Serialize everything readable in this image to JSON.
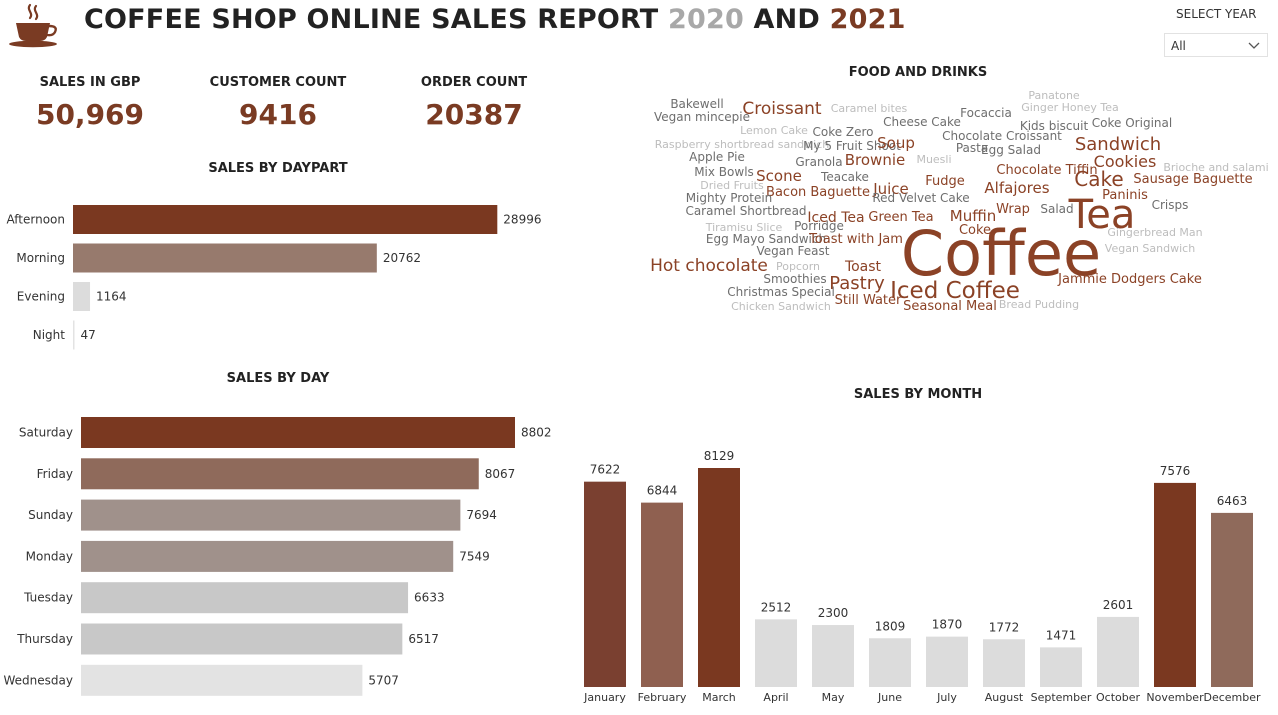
{
  "header": {
    "title_part1": "COFFEE SHOP ONLINE SALES REPORT ",
    "title_year1": "2020",
    "title_and": " AND ",
    "title_year2": "2021",
    "logo_icon": "coffee-cup-icon",
    "colors": {
      "year1": "#a8a8a8",
      "year2": "#7a3b23"
    }
  },
  "filter": {
    "label": "SELECT YEAR",
    "selected": "All",
    "icon": "chevron-down-icon"
  },
  "kpis": [
    {
      "label": "SALES IN GBP",
      "value": "50,969"
    },
    {
      "label": "CUSTOMER COUNT",
      "value": "9416"
    },
    {
      "label": "ORDER COUNT",
      "value": "20387"
    }
  ],
  "sections": {
    "food_and_drinks": "FOOD AND DRINKS"
  },
  "palette": {
    "dark": "#7a3820",
    "medium": "#8f6a5b",
    "taupe": "#a0918b",
    "light": "#c8c8c8",
    "lighter": "#dcdcdc",
    "lightest": "#e3e3e3"
  },
  "word_cloud": [
    {
      "text": "Bakewell",
      "tone": "grey",
      "size": 12
    },
    {
      "text": "Vegan mincepie",
      "tone": "grey",
      "size": 12
    },
    {
      "text": "Croissant",
      "tone": "brown",
      "size": 17
    },
    {
      "text": "Caramel bites",
      "tone": "light",
      "size": 11
    },
    {
      "text": "Focaccia",
      "tone": "grey",
      "size": 12
    },
    {
      "text": "Panatone",
      "tone": "light",
      "size": 11
    },
    {
      "text": "Ginger Honey Tea",
      "tone": "light",
      "size": 11
    },
    {
      "text": "Lemon Cake",
      "tone": "light",
      "size": 11
    },
    {
      "text": "Coke Zero",
      "tone": "grey",
      "size": 12
    },
    {
      "text": "Cheese Cake",
      "tone": "grey",
      "size": 12
    },
    {
      "text": "Kids biscuit",
      "tone": "grey",
      "size": 12
    },
    {
      "text": "Coke Original",
      "tone": "grey",
      "size": 12
    },
    {
      "text": "Chocolate Croissant",
      "tone": "grey",
      "size": 12
    },
    {
      "text": "Raspberry shortbread sandwich",
      "tone": "light",
      "size": 11
    },
    {
      "text": "My 5 Fruit Shoot",
      "tone": "grey",
      "size": 12
    },
    {
      "text": "Soup",
      "tone": "brown",
      "size": 15
    },
    {
      "text": "Sandwich",
      "tone": "brown",
      "size": 18
    },
    {
      "text": "Pasta",
      "tone": "grey",
      "size": 12
    },
    {
      "text": "Egg Salad",
      "tone": "grey",
      "size": 12
    },
    {
      "text": "Apple Pie",
      "tone": "grey",
      "size": 12
    },
    {
      "text": "Brownie",
      "tone": "brown",
      "size": 15
    },
    {
      "text": "Granola",
      "tone": "grey",
      "size": 12
    },
    {
      "text": "Muesli",
      "tone": "light",
      "size": 11
    },
    {
      "text": "Cookies",
      "tone": "brown",
      "size": 16
    },
    {
      "text": "Scone",
      "tone": "brown",
      "size": 15
    },
    {
      "text": "Mix Bowls",
      "tone": "grey",
      "size": 12
    },
    {
      "text": "Teacake",
      "tone": "grey",
      "size": 12
    },
    {
      "text": "Chocolate Tiffin",
      "tone": "brown",
      "size": 13
    },
    {
      "text": "Brioche and salami",
      "tone": "light",
      "size": 11
    },
    {
      "text": "Cake",
      "tone": "brown",
      "size": 20
    },
    {
      "text": "Fudge",
      "tone": "brown",
      "size": 13
    },
    {
      "text": "Sausage Baguette",
      "tone": "brown",
      "size": 13
    },
    {
      "text": "Dried Fruits",
      "tone": "light",
      "size": 11
    },
    {
      "text": "Bacon Baguette",
      "tone": "brown",
      "size": 13
    },
    {
      "text": "Juice",
      "tone": "brown",
      "size": 15
    },
    {
      "text": "Alfajores",
      "tone": "brown",
      "size": 15
    },
    {
      "text": "Paninis",
      "tone": "brown",
      "size": 13
    },
    {
      "text": "Mighty Protein",
      "tone": "grey",
      "size": 12
    },
    {
      "text": "Red Velvet Cake",
      "tone": "grey",
      "size": 12
    },
    {
      "text": "Tea",
      "tone": "brown",
      "size": 40
    },
    {
      "text": "Crisps",
      "tone": "grey",
      "size": 12
    },
    {
      "text": "Caramel Shortbread",
      "tone": "grey",
      "size": 12
    },
    {
      "text": "Iced Tea",
      "tone": "brown",
      "size": 14
    },
    {
      "text": "Green Tea",
      "tone": "brown",
      "size": 13
    },
    {
      "text": "Muffin",
      "tone": "brown",
      "size": 15
    },
    {
      "text": "Wrap",
      "tone": "brown",
      "size": 13
    },
    {
      "text": "Salad",
      "tone": "grey",
      "size": 12
    },
    {
      "text": "Tiramisu Slice",
      "tone": "light",
      "size": 11
    },
    {
      "text": "Porridge",
      "tone": "grey",
      "size": 12
    },
    {
      "text": "Coke",
      "tone": "brown",
      "size": 13
    },
    {
      "text": "Gingerbread Man",
      "tone": "light",
      "size": 11
    },
    {
      "text": "Egg Mayo Sandwich",
      "tone": "grey",
      "size": 12
    },
    {
      "text": "Toast with Jam",
      "tone": "brown",
      "size": 13
    },
    {
      "text": "Coffee",
      "tone": "brown",
      "size": 62
    },
    {
      "text": "Vegan Feast",
      "tone": "grey",
      "size": 12
    },
    {
      "text": "Vegan Sandwich",
      "tone": "light",
      "size": 11
    },
    {
      "text": "Hot chocolate",
      "tone": "brown",
      "size": 17
    },
    {
      "text": "Toast",
      "tone": "brown",
      "size": 14
    },
    {
      "text": "Popcorn",
      "tone": "light",
      "size": 11
    },
    {
      "text": "Smoothies",
      "tone": "grey",
      "size": 12
    },
    {
      "text": "Pastry",
      "tone": "brown",
      "size": 18
    },
    {
      "text": "Iced Coffee",
      "tone": "brown",
      "size": 23
    },
    {
      "text": "Jammie Dodgers Cake",
      "tone": "brown",
      "size": 13
    },
    {
      "text": "Christmas Special",
      "tone": "grey",
      "size": 12
    },
    {
      "text": "Still Water",
      "tone": "brown",
      "size": 13
    },
    {
      "text": "Chicken Sandwich",
      "tone": "light",
      "size": 11
    },
    {
      "text": "Seasonal Meal",
      "tone": "brown",
      "size": 13
    },
    {
      "text": "Bread Pudding",
      "tone": "light",
      "size": 11
    }
  ],
  "word_tones": {
    "brown": "#8b4226",
    "grey": "#6e6e6e",
    "light": "#bdbdbd"
  },
  "chart_data": [
    {
      "type": "bar",
      "orientation": "horizontal",
      "title": "SALES BY DAYPART",
      "categories": [
        "Afternoon",
        "Morning",
        "Evening",
        "Night"
      ],
      "values": [
        28996,
        20762,
        1164,
        47
      ],
      "colors": [
        "#7a3820",
        "#977a6d",
        "#dcdcdc",
        "#e3e3e3"
      ],
      "xlim": [
        0,
        30000
      ]
    },
    {
      "type": "bar",
      "orientation": "horizontal",
      "title": "SALES BY DAY",
      "categories": [
        "Saturday",
        "Friday",
        "Sunday",
        "Monday",
        "Tuesday",
        "Thursday",
        "Wednesday"
      ],
      "values": [
        8802,
        8067,
        7694,
        7549,
        6633,
        6517,
        5707
      ],
      "colors": [
        "#7a3820",
        "#8f6a5b",
        "#a0918b",
        "#a0918b",
        "#c8c8c8",
        "#c8c8c8",
        "#e3e3e3"
      ],
      "xlim": [
        0,
        8802
      ]
    },
    {
      "type": "bar",
      "orientation": "vertical",
      "title": "SALES BY MONTH",
      "categories": [
        "January",
        "February",
        "March",
        "April",
        "May",
        "June",
        "July",
        "August",
        "September",
        "October",
        "November",
        "December"
      ],
      "values": [
        7622,
        6844,
        8129,
        2512,
        2300,
        1809,
        1870,
        1772,
        1471,
        2601,
        7576,
        6463
      ],
      "colors": [
        "#7a4030",
        "#8f6050",
        "#7a3820",
        "#dcdcdc",
        "#dcdcdc",
        "#dcdcdc",
        "#dcdcdc",
        "#dcdcdc",
        "#dcdcdc",
        "#dcdcdc",
        "#7a3820",
        "#8f6a5b"
      ],
      "ylim": [
        0,
        8129
      ]
    }
  ]
}
